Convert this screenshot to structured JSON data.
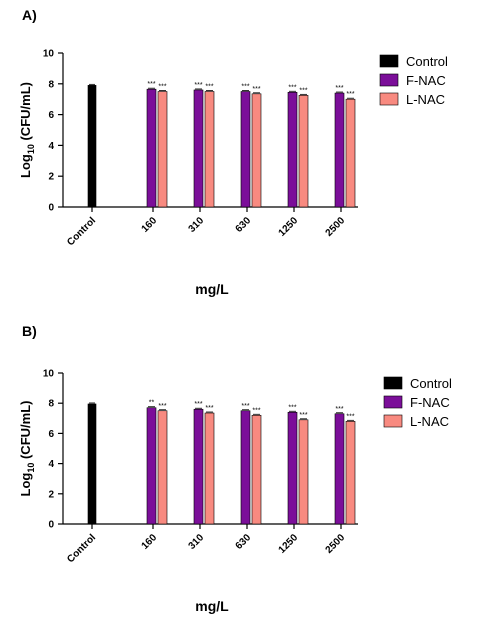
{
  "chart_data": [
    {
      "panel_label": "A)",
      "type": "bar",
      "xlabel": "mg/L",
      "ylabel_main": "Log",
      "ylabel_sub": "10",
      "ylabel_rest": "(CFU/mL)",
      "ylim": [
        0,
        10
      ],
      "yticks": [
        0,
        2,
        4,
        6,
        8,
        10
      ],
      "legend_position": "right",
      "colors": {
        "Control": "#000000",
        "F-NAC": "#7b0e99",
        "L-NAC": "#f88a80"
      },
      "categories": [
        "Control",
        "160",
        "310",
        "630",
        "1250",
        "2500"
      ],
      "series": [
        {
          "name": "Control",
          "values": [
            7.9,
            null,
            null,
            null,
            null,
            null
          ],
          "sig": [
            "",
            "",
            "",
            "",
            "",
            ""
          ]
        },
        {
          "name": "F-NAC",
          "values": [
            null,
            7.65,
            7.6,
            7.5,
            7.45,
            7.4
          ],
          "sig": [
            "",
            "***",
            "***",
            "***",
            "***",
            "***"
          ]
        },
        {
          "name": "L-NAC",
          "values": [
            null,
            7.5,
            7.5,
            7.35,
            7.25,
            7.0
          ],
          "sig": [
            "",
            "***",
            "***",
            "***",
            "***",
            "***"
          ]
        }
      ]
    },
    {
      "panel_label": "B)",
      "type": "bar",
      "xlabel": "mg/L",
      "ylabel_main": "Log",
      "ylabel_sub": "10",
      "ylabel_rest": "(CFU/mL)",
      "ylim": [
        0,
        10
      ],
      "yticks": [
        0,
        2,
        4,
        6,
        8,
        10
      ],
      "legend_position": "right",
      "colors": {
        "Control": "#000000",
        "F-NAC": "#7b0e99",
        "L-NAC": "#f88a80"
      },
      "categories": [
        "Control",
        "160",
        "310",
        "630",
        "1250",
        "2500"
      ],
      "series": [
        {
          "name": "Control",
          "values": [
            7.95,
            null,
            null,
            null,
            null,
            null
          ],
          "sig": [
            "",
            "",
            "",
            "",
            "",
            ""
          ]
        },
        {
          "name": "F-NAC",
          "values": [
            null,
            7.7,
            7.6,
            7.5,
            7.4,
            7.3
          ],
          "sig": [
            "",
            "**",
            "***",
            "***",
            "***",
            "***"
          ]
        },
        {
          "name": "L-NAC",
          "values": [
            null,
            7.5,
            7.35,
            7.2,
            6.9,
            6.8
          ],
          "sig": [
            "",
            "***",
            "***",
            "***",
            "***",
            "***"
          ]
        }
      ]
    }
  ]
}
